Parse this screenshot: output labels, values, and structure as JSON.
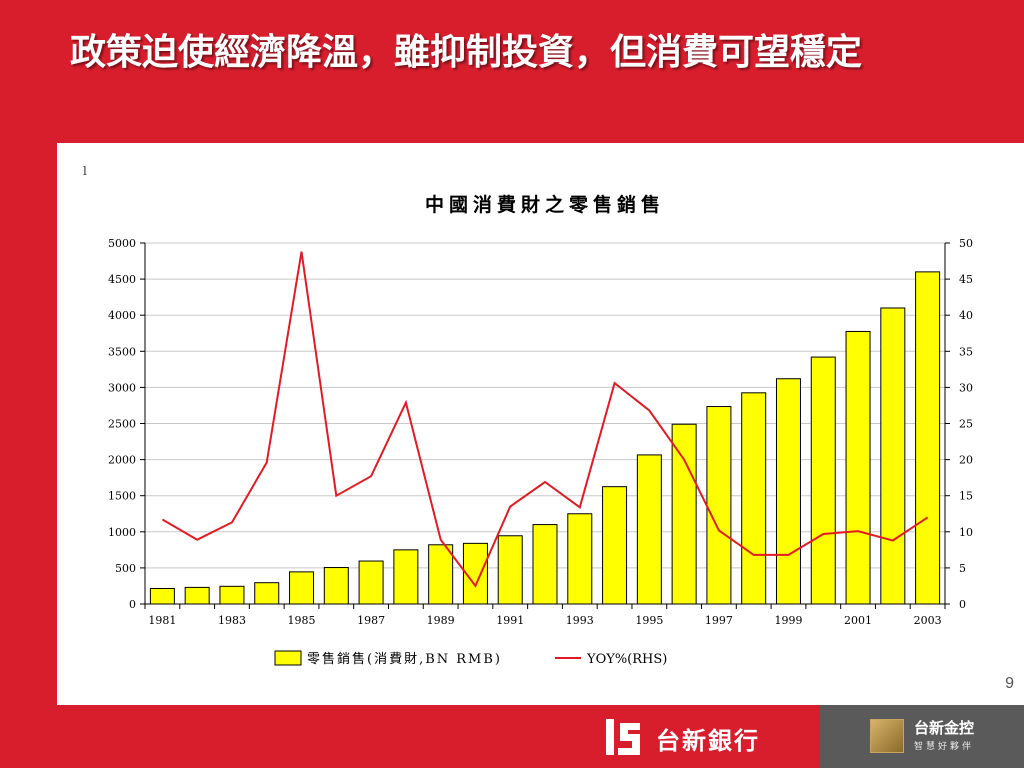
{
  "slide": {
    "title": "政策迫使經濟降溫，雖抑制投資，但消費可望穩定",
    "page_number": "9",
    "corner_mark": "l"
  },
  "footer": {
    "bank_name": "台新銀行",
    "holding_name": "台新金控",
    "holding_slogan": "智慧好夥伴"
  },
  "colors": {
    "background_red": "#d81e2d",
    "bar_fill": "#ffff00",
    "line_color": "#e31b23",
    "footer_grey": "#5a5a5a"
  },
  "chart_data": {
    "type": "bar",
    "title": "中國消費財之零售銷售",
    "categories": [
      1981,
      1982,
      1983,
      1984,
      1985,
      1986,
      1987,
      1988,
      1989,
      1990,
      1991,
      1992,
      1993,
      1994,
      1995,
      1996,
      1997,
      1998,
      1999,
      2000,
      2001,
      2002,
      2003
    ],
    "x_tick_labels": [
      "1981",
      "1983",
      "1985",
      "1987",
      "1989",
      "1991",
      "1993",
      "1995",
      "1997",
      "1999",
      "2001",
      "2003"
    ],
    "series": [
      {
        "name": "零售銷售(消費財,BN RMB)",
        "type": "bar",
        "axis": "left",
        "values": [
          215,
          230,
          245,
          295,
          445,
          505,
          595,
          750,
          820,
          840,
          945,
          1100,
          1250,
          1625,
          2065,
          2490,
          2735,
          2925,
          3120,
          3420,
          3775,
          4100,
          4600
        ]
      },
      {
        "name": "YOY%(RHS)",
        "type": "line",
        "axis": "right",
        "values": [
          11.7,
          8.9,
          11.3,
          19.6,
          48.8,
          15.0,
          17.7,
          27.9,
          8.9,
          2.5,
          13.5,
          16.9,
          13.4,
          30.6,
          26.8,
          20.0,
          10.2,
          6.8,
          6.8,
          9.7,
          10.1,
          8.8,
          12.0
        ]
      }
    ],
    "y_left": {
      "min": 0,
      "max": 5000,
      "ticks": [
        "0",
        "500",
        "1000",
        "1500",
        "2000",
        "2500",
        "3000",
        "3500",
        "4000",
        "4500",
        "5000"
      ]
    },
    "y_right": {
      "min": 0,
      "max": 50,
      "ticks": [
        "0",
        "5",
        "10",
        "15",
        "20",
        "25",
        "30",
        "35",
        "40",
        "45",
        "50"
      ]
    },
    "grid": true,
    "legend_position": "bottom"
  }
}
